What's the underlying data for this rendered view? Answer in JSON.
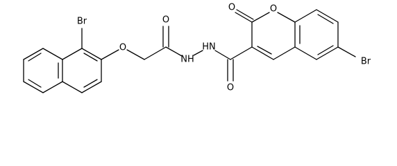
{
  "atoms": {
    "bromine_naphthyl": "Br",
    "ether_oxygen": "O",
    "acetyl_oxygen": "O",
    "hydrazide_nh_1": "NH",
    "hydrazide_nh_2": "HN",
    "amide_oxygen": "O",
    "coumarin_carbonyl_oxygen": "O",
    "coumarin_ring_oxygen": "O",
    "bromine_coumarin": "Br"
  }
}
